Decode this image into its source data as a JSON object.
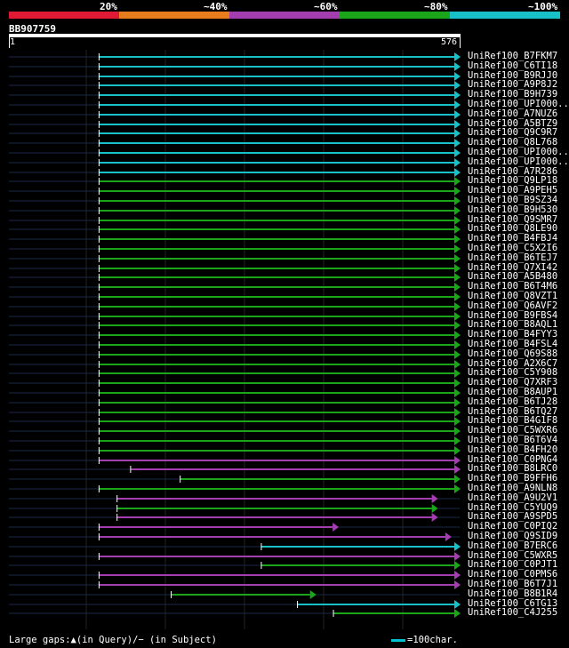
{
  "legend": {
    "labels": [
      "20%",
      "~40%",
      "~60%",
      "~80%",
      "~100%"
    ],
    "colors": [
      "#e01a35",
      "#e87d1e",
      "#a43db0",
      "#1aa51a",
      "#18c0c8"
    ]
  },
  "query": {
    "id": "BB907759",
    "start": "1",
    "end": "576"
  },
  "footer": {
    "gaps_text": "Large gaps:▲(in Query)/− (in Subject)",
    "scale_text": "=100char."
  },
  "hits": [
    {
      "label": "UniRef100_B7FKM7",
      "color": "cyan",
      "start": 0.2,
      "end": 1
    },
    {
      "label": "UniRef100_C6TI18",
      "color": "cyan",
      "start": 0.2,
      "end": 1
    },
    {
      "label": "UniRef100_B9RJJ0",
      "color": "cyan",
      "start": 0.2,
      "end": 1
    },
    {
      "label": "UniRef100_A9P8J2",
      "color": "cyan",
      "start": 0.2,
      "end": 1
    },
    {
      "label": "UniRef100_B9H739",
      "color": "cyan",
      "start": 0.2,
      "end": 1
    },
    {
      "label": "UniRef100_UPI000..",
      "color": "cyan",
      "start": 0.2,
      "end": 1
    },
    {
      "label": "UniRef100_A7NUZ6",
      "color": "cyan",
      "start": 0.2,
      "end": 1
    },
    {
      "label": "UniRef100_A5BTZ9",
      "color": "cyan",
      "start": 0.2,
      "end": 1
    },
    {
      "label": "UniRef100_Q9C9R7",
      "color": "cyan",
      "start": 0.2,
      "end": 1
    },
    {
      "label": "UniRef100_Q8L768",
      "color": "cyan",
      "start": 0.2,
      "end": 1
    },
    {
      "label": "UniRef100_UPI000..",
      "color": "cyan",
      "start": 0.2,
      "end": 1
    },
    {
      "label": "UniRef100_UPI000..",
      "color": "cyan",
      "start": 0.2,
      "end": 1
    },
    {
      "label": "UniRef100_A7R286",
      "color": "cyan",
      "start": 0.2,
      "end": 1
    },
    {
      "label": "UniRef100_Q9LP18",
      "color": "green",
      "start": 0.2,
      "end": 1
    },
    {
      "label": "UniRef100_A9PEH5",
      "color": "green",
      "start": 0.2,
      "end": 1
    },
    {
      "label": "UniRef100_B9SZ34",
      "color": "green",
      "start": 0.2,
      "end": 1
    },
    {
      "label": "UniRef100_B9H530",
      "color": "green",
      "start": 0.2,
      "end": 1
    },
    {
      "label": "UniRef100_Q9SMR7",
      "color": "green",
      "start": 0.2,
      "end": 1
    },
    {
      "label": "UniRef100_Q8LE90",
      "color": "green",
      "start": 0.2,
      "end": 1
    },
    {
      "label": "UniRef100_B4FBJ4",
      "color": "green",
      "start": 0.2,
      "end": 1
    },
    {
      "label": "UniRef100_C5X2I6",
      "color": "green",
      "start": 0.2,
      "end": 1
    },
    {
      "label": "UniRef100_B6TEJ7",
      "color": "green",
      "start": 0.2,
      "end": 1
    },
    {
      "label": "UniRef100_Q7XI42",
      "color": "green",
      "start": 0.2,
      "end": 1
    },
    {
      "label": "UniRef100_A5B480",
      "color": "green",
      "start": 0.2,
      "end": 1
    },
    {
      "label": "UniRef100_B6T4M6",
      "color": "green",
      "start": 0.2,
      "end": 1
    },
    {
      "label": "UniRef100_Q8VZT1",
      "color": "green",
      "start": 0.2,
      "end": 1
    },
    {
      "label": "UniRef100_Q6AVF2",
      "color": "green",
      "start": 0.2,
      "end": 1
    },
    {
      "label": "UniRef100_B9FBS4",
      "color": "green",
      "start": 0.2,
      "end": 1
    },
    {
      "label": "UniRef100_B8AQL1",
      "color": "green",
      "start": 0.2,
      "end": 1
    },
    {
      "label": "UniRef100_B4FYY3",
      "color": "green",
      "start": 0.2,
      "end": 1
    },
    {
      "label": "UniRef100_B4FSL4",
      "color": "green",
      "start": 0.2,
      "end": 1
    },
    {
      "label": "UniRef100_Q69S88",
      "color": "green",
      "start": 0.2,
      "end": 1
    },
    {
      "label": "UniRef100_A2X6C7",
      "color": "green",
      "start": 0.2,
      "end": 1
    },
    {
      "label": "UniRef100_C5Y908",
      "color": "green",
      "start": 0.2,
      "end": 1
    },
    {
      "label": "UniRef100_Q7XRF3",
      "color": "green",
      "start": 0.2,
      "end": 1
    },
    {
      "label": "UniRef100_B8AUP1",
      "color": "green",
      "start": 0.2,
      "end": 1
    },
    {
      "label": "UniRef100_B6TJ28",
      "color": "green",
      "start": 0.2,
      "end": 1
    },
    {
      "label": "UniRef100_B6TQ27",
      "color": "green",
      "start": 0.2,
      "end": 1
    },
    {
      "label": "UniRef100_B4G1F8",
      "color": "green",
      "start": 0.2,
      "end": 1
    },
    {
      "label": "UniRef100_C5WXR6",
      "color": "green",
      "start": 0.2,
      "end": 1
    },
    {
      "label": "UniRef100_B6T6V4",
      "color": "green",
      "start": 0.2,
      "end": 1
    },
    {
      "label": "UniRef100_B4FH20",
      "color": "green",
      "start": 0.2,
      "end": 1
    },
    {
      "label": "UniRef100_C0PNG4",
      "color": "purple",
      "start": 0.2,
      "end": 1
    },
    {
      "label": "UniRef100_B8LRC0",
      "color": "purple",
      "start": 0.27,
      "end": 1
    },
    {
      "label": "UniRef100_B9FFH6",
      "color": "green",
      "start": 0.38,
      "end": 1
    },
    {
      "label": "UniRef100_A9NLN8",
      "color": "green",
      "start": 0.2,
      "end": 1
    },
    {
      "label": "UniRef100_A9U2V1",
      "color": "purple",
      "start": 0.24,
      "end": 0.95
    },
    {
      "label": "UniRef100_C5YUQ9",
      "color": "green",
      "start": 0.24,
      "end": 0.95
    },
    {
      "label": "UniRef100_A9SPD5",
      "color": "purple",
      "start": 0.24,
      "end": 0.95
    },
    {
      "label": "UniRef100_C0PIQ2",
      "color": "purple",
      "start": 0.2,
      "end": 0.73
    },
    {
      "label": "UniRef100_Q9SID9",
      "color": "purple",
      "start": 0.2,
      "end": 0.98
    },
    {
      "label": "UniRef100_B7ERC6",
      "color": "cyan",
      "start": 0.56,
      "end": 1
    },
    {
      "label": "UniRef100_C5WXR5",
      "color": "purple",
      "start": 0.2,
      "end": 1
    },
    {
      "label": "UniRef100_C0PJT1",
      "color": "green",
      "start": 0.56,
      "end": 1
    },
    {
      "label": "UniRef100_C0PMS6",
      "color": "purple",
      "start": 0.2,
      "end": 1
    },
    {
      "label": "UniRef100_B6T7J1",
      "color": "purple",
      "start": 0.2,
      "end": 1
    },
    {
      "label": "UniRef100_B8B1R4",
      "color": "green",
      "start": 0.36,
      "end": 0.68
    },
    {
      "label": "UniRef100_C6TG13",
      "color": "cyan",
      "start": 0.64,
      "end": 1
    },
    {
      "label": "UniRef100_C4J255",
      "color": "green",
      "start": 0.72,
      "end": 1
    }
  ]
}
